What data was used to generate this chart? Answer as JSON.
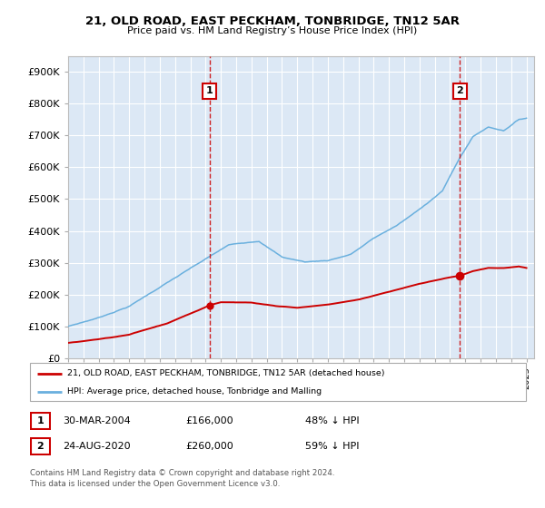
{
  "title": "21, OLD ROAD, EAST PECKHAM, TONBRIDGE, TN12 5AR",
  "subtitle": "Price paid vs. HM Land Registry’s House Price Index (HPI)",
  "xlim_start": 1995.0,
  "xlim_end": 2025.5,
  "ylim": [
    0,
    950000
  ],
  "yticks": [
    0,
    100000,
    200000,
    300000,
    400000,
    500000,
    600000,
    700000,
    800000,
    900000
  ],
  "ytick_labels": [
    "£0",
    "£100K",
    "£200K",
    "£300K",
    "£400K",
    "£500K",
    "£600K",
    "£700K",
    "£800K",
    "£900K"
  ],
  "hpi_color": "#6ab0de",
  "price_color": "#cc0000",
  "marker1_x": 2004.25,
  "marker1_price": 166000,
  "marker2_x": 2020.65,
  "marker2_price": 260000,
  "hpi_at_1995": 100000,
  "hpi_at_2004": 319230,
  "hpi_at_2020": 634146,
  "hpi_at_2024": 760000,
  "price_at_1995": 48000,
  "price_at_2024": 290000,
  "legend_line1": "21, OLD ROAD, EAST PECKHAM, TONBRIDGE, TN12 5AR (detached house)",
  "legend_line2": "HPI: Average price, detached house, Tonbridge and Malling",
  "row1_num": "1",
  "row1_date": "30-MAR-2004",
  "row1_price": "£166,000",
  "row1_hpi": "48% ↓ HPI",
  "row2_num": "2",
  "row2_date": "24-AUG-2020",
  "row2_price": "£260,000",
  "row2_hpi": "59% ↓ HPI",
  "footnote_line1": "Contains HM Land Registry data © Crown copyright and database right 2024.",
  "footnote_line2": "This data is licensed under the Open Government Licence v3.0.",
  "plot_bg": "#dce8f5",
  "fig_bg": "#ffffff",
  "grid_color": "#ffffff",
  "spine_color": "#bbbbbb",
  "number_box_color": "#cc0000"
}
